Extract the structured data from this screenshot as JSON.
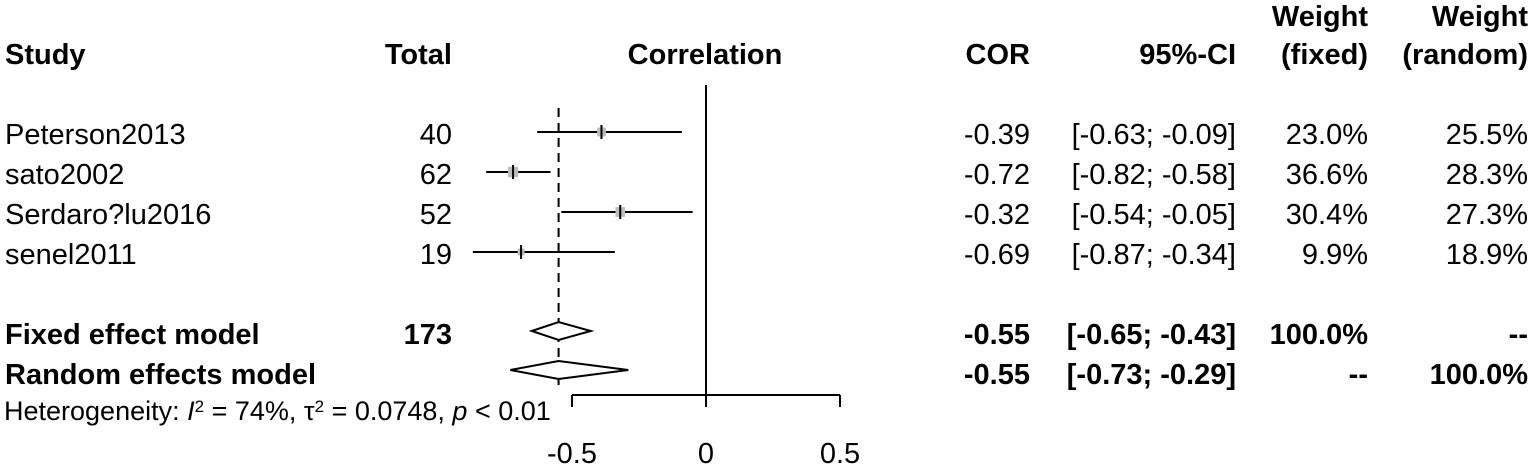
{
  "header": {
    "study": "Study",
    "total": "Total",
    "correlation": "Correlation",
    "cor": "COR",
    "ci": "95%-CI",
    "weight_fixed_top": "Weight",
    "weight_fixed_bottom": "(fixed)",
    "weight_random_top": "Weight",
    "weight_random_bottom": "(random)"
  },
  "studies": [
    {
      "name": "Peterson2013",
      "total": "40",
      "cor": "-0.39",
      "ci": "[-0.63; -0.09]",
      "w_fixed": "23.0%",
      "w_random": "25.5%"
    },
    {
      "name": "sato2002",
      "total": "62",
      "cor": "-0.72",
      "ci": "[-0.82; -0.58]",
      "w_fixed": "36.6%",
      "w_random": "28.3%"
    },
    {
      "name": "Serdaro?lu2016",
      "total": "52",
      "cor": "-0.32",
      "ci": "[-0.54; -0.05]",
      "w_fixed": "30.4%",
      "w_random": "27.3%"
    },
    {
      "name": "senel2011",
      "total": "19",
      "cor": "-0.69",
      "ci": "[-0.87; -0.34]",
      "w_fixed": "9.9%",
      "w_random": "18.9%"
    }
  ],
  "fixed": {
    "label": "Fixed effect model",
    "total": "173",
    "cor": "-0.55",
    "ci": "[-0.65; -0.43]",
    "w_fixed": "100.0%",
    "w_random": "--"
  },
  "random": {
    "label": "Random effects model",
    "total": "",
    "cor": "-0.55",
    "ci": "[-0.73; -0.29]",
    "w_fixed": "--",
    "w_random": "100.0%"
  },
  "heterogeneity": {
    "prefix": "Heterogeneity: ",
    "i2_symbol": "I",
    "i2_value": " = 74%, ",
    "tau_symbol": "τ",
    "tau_value": " = 0.0748, ",
    "p_symbol": "p",
    "p_value": " < 0.01"
  },
  "chart_data": {
    "type": "forest",
    "x_ticks": [
      -0.5,
      0,
      0.5
    ],
    "x_tick_labels": [
      "-0.5",
      "0",
      "0.5"
    ],
    "xlim": [
      -0.5,
      0.5
    ],
    "reference_line": 0,
    "pooled_line": -0.55,
    "studies": [
      {
        "name": "Peterson2013",
        "estimate": -0.39,
        "lower": -0.63,
        "upper": -0.09,
        "weight": 23.0
      },
      {
        "name": "sato2002",
        "estimate": -0.72,
        "lower": -0.82,
        "upper": -0.58,
        "weight": 36.6
      },
      {
        "name": "Serdaro?lu2016",
        "estimate": -0.32,
        "lower": -0.54,
        "upper": -0.05,
        "weight": 30.4
      },
      {
        "name": "senel2011",
        "estimate": -0.69,
        "lower": -0.87,
        "upper": -0.34,
        "weight": 9.9
      }
    ],
    "summaries": [
      {
        "name": "Fixed effect model",
        "estimate": -0.55,
        "lower": -0.65,
        "upper": -0.43
      },
      {
        "name": "Random effects model",
        "estimate": -0.55,
        "lower": -0.73,
        "upper": -0.29
      }
    ]
  }
}
